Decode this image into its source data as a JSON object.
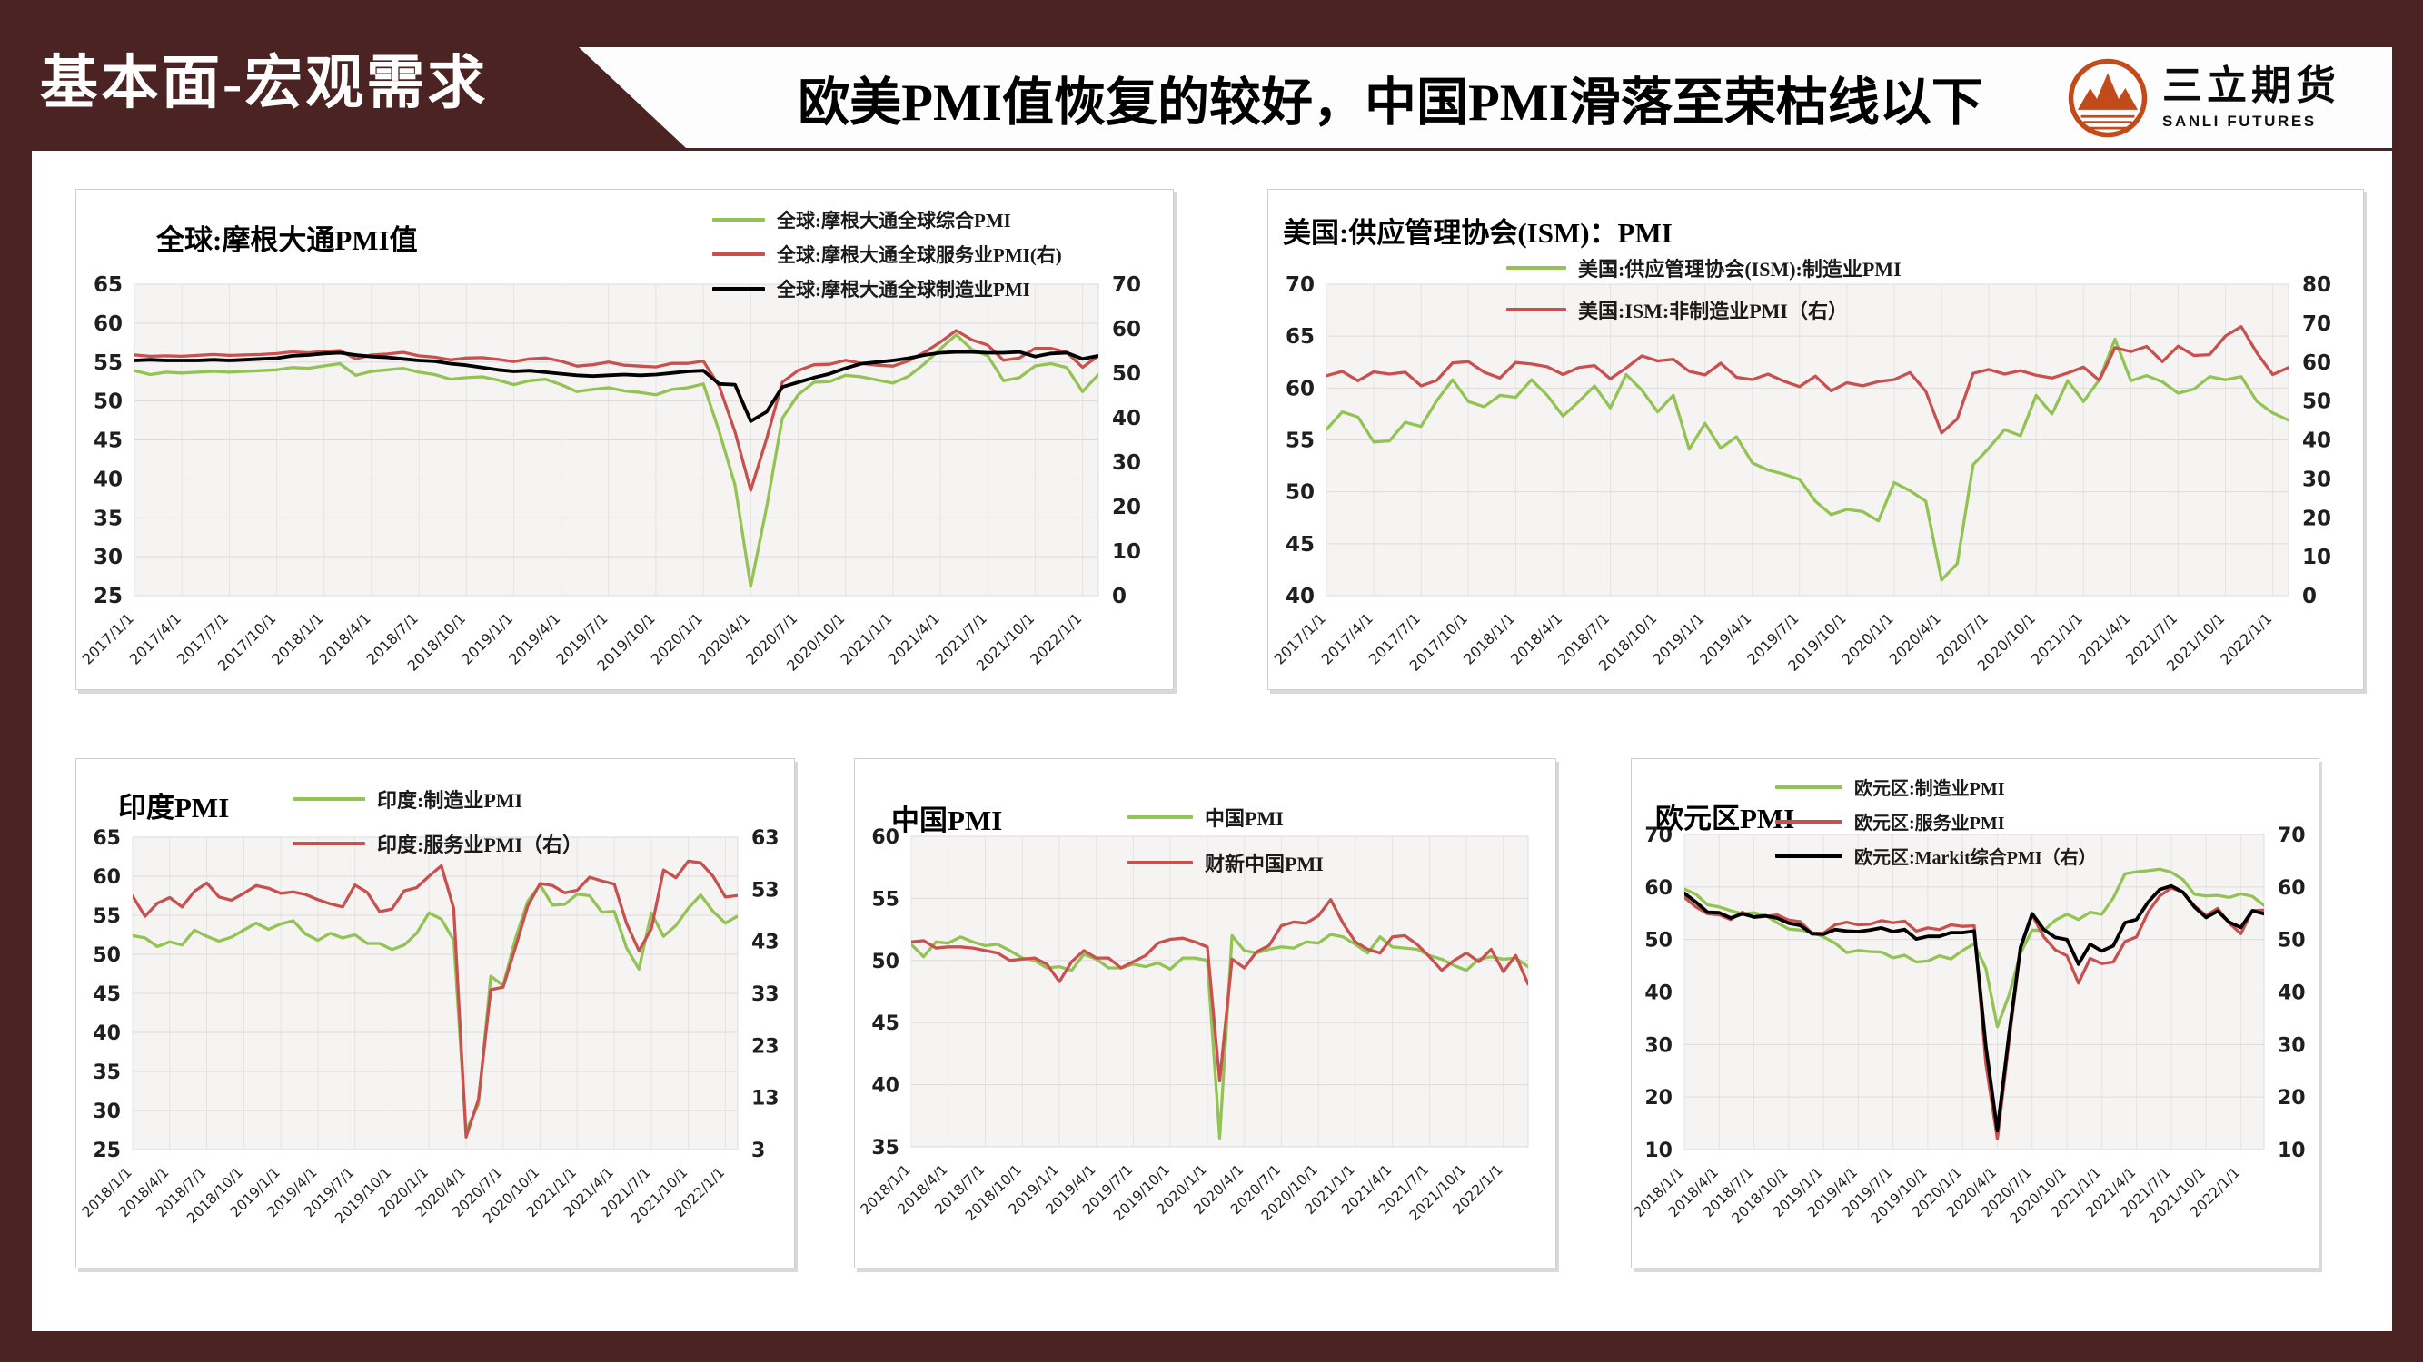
{
  "slide": {
    "section_label": "基本面-宏观需求",
    "title": "欧美PMI值恢复的较好，中国PMI滑落至荣枯线以下",
    "logo": {
      "name": "三立期货",
      "subtitle": "SANLI FUTURES"
    }
  },
  "colors": {
    "frame": "#4a2322",
    "green": "#92c353",
    "red": "#c8504e",
    "black": "#000000",
    "logo_orange": "#c24b1c",
    "plot_bg": "#f5f4f2",
    "grid": "#dcdcdc"
  },
  "chart_data": [
    {
      "type": "line",
      "title": "全球:摩根大通PMI值",
      "xlabel": "",
      "ylabel": "",
      "legend_position": "top-right",
      "x_tick_labels": [
        "2017/1/1",
        "2017/4/1",
        "2017/7/1",
        "2017/10/1",
        "2018/1/1",
        "2018/4/1",
        "2018/7/1",
        "2018/10/1",
        "2019/1/1",
        "2019/4/1",
        "2019/7/1",
        "2019/10/1",
        "2020/1/1",
        "2020/4/1",
        "2020/7/1",
        "2020/10/1",
        "2021/1/1",
        "2021/4/1",
        "2021/7/1",
        "2021/10/1",
        "2022/1/1"
      ],
      "left_axis": {
        "min": 25,
        "max": 65,
        "step": 5
      },
      "right_axis": {
        "min": 0,
        "max": 70,
        "step": 10
      },
      "series": [
        {
          "name": "全球:摩根大通全球综合PMI",
          "color": "green",
          "axis": "left",
          "values": [
            53.9,
            53.4,
            53.7,
            53.6,
            53.7,
            53.8,
            53.7,
            53.8,
            53.9,
            54.0,
            54.3,
            54.2,
            54.5,
            54.8,
            53.3,
            53.8,
            54.0,
            54.2,
            53.7,
            53.4,
            52.8,
            53.0,
            53.1,
            52.7,
            52.1,
            52.6,
            52.8,
            52.1,
            51.2,
            51.5,
            51.7,
            51.3,
            51.1,
            50.8,
            51.5,
            51.7,
            52.2,
            46.1,
            39.2,
            26.2,
            36.3,
            47.8,
            50.8,
            52.4,
            52.5,
            53.3,
            53.1,
            52.7,
            52.3,
            53.2,
            54.8,
            56.7,
            58.5,
            56.6,
            55.8,
            52.6,
            53.0,
            54.5,
            54.8,
            54.3,
            51.2,
            53.4
          ]
        },
        {
          "name": "全球:摩根大通全球服务业PMI(右)",
          "color": "red",
          "axis": "right",
          "values": [
            54.1,
            53.8,
            53.9,
            53.8,
            54.0,
            54.2,
            54.0,
            54.1,
            54.2,
            54.4,
            54.8,
            54.6,
            54.9,
            55.1,
            53.2,
            54.1,
            54.3,
            54.7,
            53.9,
            53.6,
            53.0,
            53.4,
            53.5,
            53.1,
            52.6,
            53.2,
            53.4,
            52.7,
            51.6,
            51.9,
            52.5,
            51.8,
            51.6,
            51.4,
            52.2,
            52.2,
            52.7,
            47.1,
            36.8,
            23.7,
            35.2,
            48.0,
            50.6,
            51.9,
            52.0,
            52.9,
            52.2,
            51.8,
            51.6,
            52.8,
            54.7,
            57.0,
            59.6,
            57.5,
            56.3,
            52.9,
            53.4,
            55.6,
            55.6,
            54.7,
            51.3,
            53.9
          ]
        },
        {
          "name": "全球:摩根大通全球制造业PMI",
          "color": "black",
          "axis": "left",
          "values": [
            55.2,
            55.3,
            55.2,
            55.2,
            55.2,
            55.3,
            55.2,
            55.3,
            55.4,
            55.5,
            55.8,
            55.9,
            56.1,
            56.2,
            55.9,
            55.7,
            55.6,
            55.4,
            55.2,
            55.1,
            54.8,
            54.6,
            54.3,
            54.0,
            53.8,
            53.9,
            53.7,
            53.5,
            53.3,
            53.2,
            53.3,
            53.4,
            53.3,
            53.4,
            53.6,
            53.8,
            53.9,
            52.2,
            52.1,
            47.4,
            48.6,
            51.8,
            52.4,
            53.0,
            53.5,
            54.2,
            54.8,
            55.0,
            55.2,
            55.5,
            55.9,
            56.2,
            56.3,
            56.3,
            56.2,
            56.2,
            56.3,
            55.7,
            56.1,
            56.2,
            55.4,
            55.8
          ]
        }
      ]
    },
    {
      "type": "line",
      "title": "美国:供应管理协会(ISM)：PMI",
      "xlabel": "",
      "ylabel": "",
      "legend_position": "top-right",
      "x_tick_labels": [
        "2017/1/1",
        "2017/4/1",
        "2017/7/1",
        "2017/10/1",
        "2018/1/1",
        "2018/4/1",
        "2018/7/1",
        "2018/10/1",
        "2019/1/1",
        "2019/4/1",
        "2019/7/1",
        "2019/10/1",
        "2020/1/1",
        "2020/4/1",
        "2020/7/1",
        "2020/10/1",
        "2021/1/1",
        "2021/4/1",
        "2021/7/1",
        "2021/10/1",
        "2022/1/1"
      ],
      "left_axis": {
        "min": 40,
        "max": 70,
        "step": 5
      },
      "right_axis": {
        "min": 0,
        "max": 80,
        "step": 10
      },
      "series": [
        {
          "name": "美国:供应管理协会(ISM):制造业PMI",
          "color": "green",
          "axis": "left",
          "values": [
            56.0,
            57.7,
            57.2,
            54.8,
            54.9,
            56.7,
            56.3,
            58.8,
            60.8,
            58.7,
            58.2,
            59.3,
            59.1,
            60.8,
            59.3,
            57.3,
            58.7,
            60.2,
            58.1,
            61.3,
            59.8,
            57.7,
            59.3,
            54.1,
            56.6,
            54.2,
            55.3,
            52.8,
            52.1,
            51.7,
            51.2,
            49.1,
            47.8,
            48.3,
            48.1,
            47.2,
            50.9,
            50.1,
            49.1,
            41.5,
            43.1,
            52.6,
            54.2,
            56.0,
            55.4,
            59.3,
            57.5,
            60.7,
            58.7,
            60.8,
            64.7,
            60.7,
            61.2,
            60.6,
            59.5,
            59.9,
            61.1,
            60.8,
            61.1,
            58.7,
            57.6,
            56.9
          ]
        },
        {
          "name": "美国:ISM:非制造业PMI（右）",
          "color": "red",
          "axis": "right",
          "values": [
            56.5,
            57.6,
            55.2,
            57.5,
            56.9,
            57.4,
            53.9,
            55.3,
            59.8,
            60.1,
            57.4,
            55.9,
            59.9,
            59.5,
            58.8,
            56.8,
            58.6,
            59.1,
            55.7,
            58.5,
            61.6,
            60.3,
            60.7,
            57.6,
            56.7,
            59.7,
            56.1,
            55.5,
            56.9,
            55.1,
            53.7,
            56.4,
            52.6,
            54.7,
            53.9,
            55.0,
            55.5,
            57.3,
            52.5,
            41.8,
            45.4,
            57.1,
            58.1,
            56.9,
            57.8,
            56.6,
            55.9,
            57.2,
            58.7,
            55.3,
            63.7,
            62.7,
            64.0,
            60.1,
            64.1,
            61.7,
            61.9,
            66.7,
            69.1,
            62.3,
            56.8,
            58.6
          ]
        }
      ]
    },
    {
      "type": "line",
      "title": "印度PMI",
      "xlabel": "",
      "ylabel": "",
      "legend_position": "top-right",
      "x_tick_labels": [
        "2018/1/1",
        "2018/4/1",
        "2018/7/1",
        "2018/10/1",
        "2019/1/1",
        "2019/4/1",
        "2019/7/1",
        "2019/10/1",
        "2020/1/1",
        "2020/4/1",
        "2020/7/1",
        "2020/10/1",
        "2021/1/1",
        "2021/4/1",
        "2021/7/1",
        "2021/10/1",
        "2022/1/1"
      ],
      "left_axis": {
        "min": 25,
        "max": 65,
        "step": 5
      },
      "right_axis": {
        "min": 3,
        "max": 63,
        "step": 10
      },
      "series": [
        {
          "name": "印度:制造业PMI",
          "color": "green",
          "axis": "left",
          "values": [
            52.4,
            52.1,
            51.0,
            51.6,
            51.2,
            53.1,
            52.3,
            51.7,
            52.2,
            53.1,
            54.0,
            53.2,
            53.9,
            54.3,
            52.6,
            51.8,
            52.7,
            52.1,
            52.5,
            51.4,
            51.4,
            50.6,
            51.2,
            52.7,
            55.3,
            54.5,
            51.8,
            27.4,
            30.8,
            47.2,
            46.0,
            52.0,
            56.8,
            58.9,
            56.3,
            56.4,
            57.7,
            57.5,
            55.4,
            55.5,
            50.8,
            48.1,
            55.3,
            52.3,
            53.7,
            55.9,
            57.6,
            55.5,
            54.0,
            54.9
          ]
        },
        {
          "name": "印度:服务业PMI（右）",
          "color": "red",
          "axis": "right",
          "values": [
            51.7,
            47.8,
            50.3,
            51.4,
            49.6,
            52.6,
            54.2,
            51.5,
            50.9,
            52.2,
            53.7,
            53.2,
            52.2,
            52.5,
            52.0,
            51.0,
            50.2,
            49.6,
            53.8,
            52.4,
            48.7,
            49.2,
            52.7,
            53.3,
            55.5,
            57.5,
            49.3,
            5.4,
            12.6,
            33.7,
            34.2,
            41.8,
            49.8,
            54.1,
            53.7,
            52.3,
            52.8,
            55.3,
            54.6,
            54.0,
            46.4,
            41.2,
            45.4,
            56.7,
            55.2,
            58.4,
            58.1,
            55.5,
            51.5,
            51.8
          ]
        }
      ]
    },
    {
      "type": "line",
      "title": "中国PMI",
      "xlabel": "",
      "ylabel": "",
      "legend_position": "top-right",
      "x_tick_labels": [
        "2018/1/1",
        "2018/4/1",
        "2018/7/1",
        "2018/10/1",
        "2019/1/1",
        "2019/4/1",
        "2019/7/1",
        "2019/10/1",
        "2020/1/1",
        "2020/4/1",
        "2020/7/1",
        "2020/10/1",
        "2021/1/1",
        "2021/4/1",
        "2021/7/1",
        "2021/10/1",
        "2022/1/1"
      ],
      "left_axis": {
        "min": 35,
        "max": 60,
        "step": 5
      },
      "right_axis": null,
      "series": [
        {
          "name": "中国PMI",
          "color": "green",
          "axis": "left",
          "values": [
            51.3,
            50.3,
            51.5,
            51.4,
            51.9,
            51.5,
            51.2,
            51.3,
            50.8,
            50.2,
            50.0,
            49.4,
            49.5,
            49.2,
            50.5,
            50.1,
            49.4,
            49.4,
            49.7,
            49.5,
            49.8,
            49.3,
            50.2,
            50.2,
            50.0,
            35.7,
            52.0,
            50.8,
            50.6,
            50.9,
            51.1,
            51.0,
            51.5,
            51.4,
            52.1,
            51.9,
            51.3,
            50.6,
            51.9,
            51.1,
            51.0,
            50.9,
            50.4,
            50.1,
            49.6,
            49.2,
            50.1,
            50.3,
            50.1,
            50.2,
            49.5
          ]
        },
        {
          "name": "财新中国PMI",
          "color": "red",
          "axis": "left",
          "values": [
            51.5,
            51.6,
            51.0,
            51.1,
            51.1,
            51.0,
            50.8,
            50.6,
            50.0,
            50.1,
            50.2,
            49.7,
            48.3,
            49.9,
            50.8,
            50.2,
            50.2,
            49.4,
            49.9,
            50.4,
            51.4,
            51.7,
            51.8,
            51.5,
            51.1,
            40.3,
            50.1,
            49.4,
            50.7,
            51.2,
            52.8,
            53.1,
            53.0,
            53.6,
            54.9,
            53.0,
            51.5,
            50.9,
            50.6,
            51.9,
            52.0,
            51.3,
            50.3,
            49.2,
            50.0,
            50.6,
            49.9,
            50.9,
            49.1,
            50.4,
            48.1
          ]
        }
      ]
    },
    {
      "type": "line",
      "title": "欧元区PMI",
      "xlabel": "",
      "ylabel": "",
      "legend_position": "top-center",
      "x_tick_labels": [
        "2018/1/1",
        "2018/4/1",
        "2018/7/1",
        "2018/10/1",
        "2019/1/1",
        "2019/4/1",
        "2019/7/1",
        "2019/10/1",
        "2020/1/1",
        "2020/4/1",
        "2020/7/1",
        "2020/10/1",
        "2021/1/1",
        "2021/4/1",
        "2021/7/1",
        "2021/10/1",
        "2022/1/1"
      ],
      "left_axis": {
        "min": 10,
        "max": 70,
        "step": 10
      },
      "right_axis": {
        "min": 10,
        "max": 70,
        "step": 10
      },
      "series": [
        {
          "name": "欧元区:制造业PMI",
          "color": "green",
          "axis": "left",
          "values": [
            59.6,
            58.6,
            56.6,
            56.2,
            55.5,
            54.9,
            55.1,
            54.6,
            53.2,
            52.0,
            51.8,
            51.4,
            50.5,
            49.3,
            47.5,
            47.9,
            47.7,
            47.6,
            46.5,
            47.0,
            45.7,
            45.9,
            46.9,
            46.3,
            47.9,
            49.2,
            44.5,
            33.4,
            39.4,
            47.4,
            51.8,
            51.7,
            53.7,
            54.8,
            53.8,
            55.2,
            54.8,
            57.9,
            62.5,
            62.9,
            63.1,
            63.4,
            62.8,
            61.4,
            58.6,
            58.3,
            58.4,
            58.0,
            58.7,
            58.2,
            56.5
          ]
        },
        {
          "name": "欧元区:服务业PMI",
          "color": "red",
          "axis": "left",
          "values": [
            58.0,
            56.2,
            54.9,
            54.7,
            53.8,
            55.2,
            54.2,
            54.4,
            54.7,
            53.7,
            53.4,
            51.2,
            51.2,
            52.8,
            53.3,
            52.8,
            52.9,
            53.6,
            53.2,
            53.5,
            51.6,
            52.2,
            51.9,
            52.8,
            52.5,
            52.6,
            26.4,
            12.0,
            30.5,
            48.3,
            54.7,
            50.5,
            48.0,
            46.9,
            41.7,
            46.4,
            45.4,
            45.7,
            49.6,
            50.5,
            55.2,
            58.3,
            59.8,
            59.0,
            56.4,
            54.6,
            55.9,
            53.1,
            51.1,
            55.5,
            55.6
          ]
        },
        {
          "name": "欧元区:Markit综合PMI（右）",
          "color": "black",
          "axis": "right",
          "values": [
            58.8,
            57.1,
            55.2,
            55.1,
            54.1,
            54.9,
            54.3,
            54.5,
            54.1,
            53.1,
            52.7,
            51.1,
            51.0,
            51.9,
            51.6,
            51.5,
            51.8,
            52.2,
            51.5,
            51.9,
            50.1,
            50.6,
            50.6,
            51.3,
            51.3,
            51.6,
            29.7,
            13.6,
            31.9,
            48.5,
            54.9,
            51.9,
            50.4,
            50.0,
            45.3,
            49.1,
            47.8,
            48.8,
            53.2,
            53.8,
            57.1,
            59.5,
            60.2,
            59.0,
            56.2,
            54.2,
            55.4,
            53.3,
            52.3,
            55.5,
            54.9
          ]
        }
      ]
    }
  ]
}
